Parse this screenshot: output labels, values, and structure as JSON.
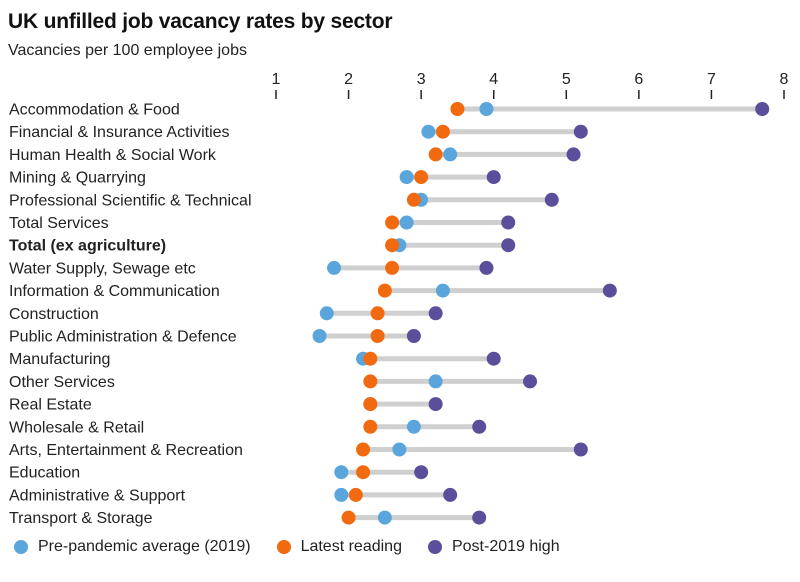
{
  "chart_data": {
    "type": "dumbbell",
    "title": "UK unfilled job vacancy rates by sector",
    "subtitle": "Vacancies per 100 employee jobs",
    "xlim": [
      1,
      8
    ],
    "ticks": [
      "1",
      "2",
      "3",
      "4",
      "5",
      "6",
      "7",
      "8"
    ],
    "series_names": {
      "pre": "Pre-pandemic average (2019)",
      "latest": "Latest reading",
      "high": "Post-2019 high"
    },
    "colors": {
      "pre": "#5aa6dc",
      "latest": "#f26a10",
      "high": "#5b4e9a",
      "bar": "#cfcfcf",
      "axis": "#222222"
    },
    "categories": [
      {
        "label": "Accommodation & Food",
        "pre": 3.9,
        "latest": 3.5,
        "high": 7.7,
        "bold": false
      },
      {
        "label": "Financial & Insurance Activities",
        "pre": 3.1,
        "latest": 3.3,
        "high": 5.2,
        "bold": false
      },
      {
        "label": "Human Health & Social Work",
        "pre": 3.4,
        "latest": 3.2,
        "high": 5.1,
        "bold": false
      },
      {
        "label": "Mining & Quarrying",
        "pre": 2.8,
        "latest": 3.0,
        "high": 4.0,
        "bold": false
      },
      {
        "label": "Professional Scientific & Technical",
        "pre": 3.0,
        "latest": 2.9,
        "high": 4.8,
        "bold": false
      },
      {
        "label": "Total Services",
        "pre": 2.8,
        "latest": 2.6,
        "high": 4.2,
        "bold": false
      },
      {
        "label": "Total (ex agriculture)",
        "pre": 2.7,
        "latest": 2.6,
        "high": 4.2,
        "bold": true
      },
      {
        "label": "Water Supply, Sewage etc",
        "pre": 1.8,
        "latest": 2.6,
        "high": 3.9,
        "bold": false
      },
      {
        "label": "Information & Communication",
        "pre": 3.3,
        "latest": 2.5,
        "high": 5.6,
        "bold": false
      },
      {
        "label": "Construction",
        "pre": 1.7,
        "latest": 2.4,
        "high": 3.2,
        "bold": false
      },
      {
        "label": "Public Administration & Defence",
        "pre": 1.6,
        "latest": 2.4,
        "high": 2.9,
        "bold": false
      },
      {
        "label": "Manufacturing",
        "pre": 2.2,
        "latest": 2.3,
        "high": 4.0,
        "bold": false
      },
      {
        "label": "Other Services",
        "pre": 3.2,
        "latest": 2.3,
        "high": 4.5,
        "bold": false
      },
      {
        "label": "Real Estate",
        "pre": 2.3,
        "latest": 2.3,
        "high": 3.2,
        "bold": false
      },
      {
        "label": "Wholesale & Retail",
        "pre": 2.9,
        "latest": 2.3,
        "high": 3.8,
        "bold": false
      },
      {
        "label": "Arts, Entertainment & Recreation",
        "pre": 2.7,
        "latest": 2.2,
        "high": 5.2,
        "bold": false
      },
      {
        "label": "Education",
        "pre": 1.9,
        "latest": 2.2,
        "high": 3.0,
        "bold": false
      },
      {
        "label": "Administrative & Support",
        "pre": 1.9,
        "latest": 2.1,
        "high": 3.4,
        "bold": false
      },
      {
        "label": "Transport & Storage",
        "pre": 2.5,
        "latest": 2.0,
        "high": 3.8,
        "bold": false
      }
    ]
  }
}
